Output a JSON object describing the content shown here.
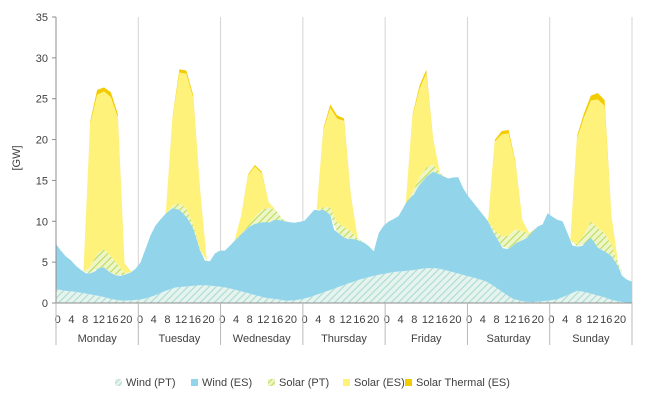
{
  "chart_data": {
    "type": "area",
    "stacked": true,
    "ylabel": "[GW]",
    "ylim": [
      0,
      35
    ],
    "yticks": [
      0,
      5,
      10,
      15,
      20,
      25,
      30,
      35
    ],
    "days": [
      "Monday",
      "Tuesday",
      "Wednesday",
      "Thursday",
      "Friday",
      "Saturday",
      "Sunday"
    ],
    "hour_ticks": [
      "0",
      "4",
      "8",
      "12",
      "16",
      "20"
    ],
    "gridlines": "vertical day separators",
    "legend_position": "bottom",
    "colors": {
      "wind_pt": "#a9ddd0",
      "wind_es": "#92d5ea",
      "solar_pt": "#b9dc5a",
      "solar_es": "#fff27a",
      "solar_thermal_es": "#f2cc00"
    },
    "series": [
      {
        "name": "Wind (PT)",
        "values": [
          1.7,
          1.5,
          1.4,
          1.2,
          1.0,
          0.8,
          0.5,
          0.3,
          0.3,
          0.4,
          0.6,
          1.0,
          1.5,
          1.9,
          2.0,
          2.1,
          2.2,
          2.1,
          2.0,
          1.8,
          1.5,
          1.2,
          0.9,
          0.6,
          0.5,
          0.3,
          0.3,
          0.5,
          0.8,
          1.2,
          1.6,
          2.0,
          2.4,
          2.8,
          3.1,
          3.4,
          3.6,
          3.8,
          3.9,
          4.0,
          4.2,
          4.3,
          4.2,
          3.9,
          3.6,
          3.3,
          3.0,
          2.7,
          2.0,
          1.2,
          0.5,
          0.2,
          0.1,
          0.2,
          0.3,
          0.5,
          1.0,
          1.5,
          1.3,
          1.0,
          0.7,
          0.3,
          0.1,
          0.0
        ]
      },
      {
        "name": "Wind (ES)",
        "values": [
          5.5,
          4.8,
          4.2,
          3.8,
          3.2,
          2.8,
          2.5,
          2.6,
          3.0,
          4.0,
          3.5,
          3.2,
          3.0,
          3.0,
          3.2,
          3.4,
          3.8,
          4.5,
          6.0,
          7.5,
          8.5,
          9.0,
          9.4,
          9.8,
          9.8,
          9.4,
          8.7,
          8.0,
          6.5,
          4.3,
          3.0,
          3.0,
          4.0,
          4.4,
          4.5,
          5.2,
          6.0,
          6.8,
          7.5,
          8.3,
          8.7,
          9.0,
          9.3,
          9.3,
          9.7,
          9.8,
          9.7,
          9.6,
          9.5,
          9.5,
          9.5,
          10.0,
          10.5,
          10.2,
          10.1,
          9.8,
          7.2,
          6.5,
          5.8,
          5.4,
          5.3,
          4.8,
          4.4,
          3.8,
          3.0,
          5.1,
          5.9,
          6.3,
          6.5,
          6.8,
          7.8,
          8.9,
          9.2,
          10.2,
          10.8,
          11.5,
          11.8,
          11.6,
          11.4,
          11.3,
          11.6,
          11.8,
          10.6,
          9.8,
          9.2,
          8.6,
          8.0,
          7.5,
          6.6,
          6.0,
          5.4,
          5.7,
          6.5,
          7.2,
          7.5,
          7.9,
          8.6,
          9.2,
          9.4,
          10.7,
          10.2,
          9.7,
          9.3,
          7.6,
          5.8,
          5.4,
          5.6,
          6.4,
          7.0,
          5.9,
          5.7,
          5.6,
          5.3,
          4.6,
          3.2,
          2.8,
          2.6
        ]
      },
      {
        "name": "Solar (PT)",
        "values": [
          0,
          0,
          0,
          0,
          0,
          0.8,
          1.8,
          2.2,
          2.0,
          1.4,
          0.2,
          0,
          0,
          0,
          0,
          0,
          0,
          0.3,
          0.8,
          1.0,
          0.5,
          0.1,
          0,
          0,
          0,
          0,
          0,
          0,
          0.2,
          0.8,
          1.5,
          1.8,
          1.2,
          0.2,
          0,
          0,
          0,
          0,
          0,
          0.3,
          0.9,
          1.2,
          1.3,
          0.9,
          0.2,
          0,
          0,
          0,
          0,
          0,
          0,
          0,
          0.4,
          0.9,
          1.1,
          0.9,
          0.2,
          0,
          0,
          0,
          0,
          0,
          0,
          0,
          0.5,
          1.2,
          1.6,
          1.7,
          1.1,
          0.3,
          0,
          0,
          0,
          0,
          0,
          0,
          0.3,
          1.1,
          2.0,
          2.4,
          2.2,
          1.4,
          0.3,
          0,
          0
        ]
      },
      {
        "name": "Solar (ES)",
        "values": [
          0,
          0,
          0,
          0,
          0,
          17.5,
          19.5,
          19.3,
          19.5,
          18.0,
          1.0,
          0,
          0,
          0,
          0,
          0,
          0,
          10.7,
          16.0,
          16.5,
          15.5,
          7.3,
          0,
          0,
          0,
          0,
          0,
          2.3,
          6.2,
          6.2,
          4.5,
          0.7,
          0,
          0,
          0,
          0,
          0,
          0,
          0,
          9.5,
          12.2,
          12.7,
          13.0,
          4.3,
          0,
          0,
          0,
          0,
          0,
          0,
          0,
          0,
          9.3,
          10.8,
          11.6,
          3.0,
          0,
          0,
          0,
          0,
          0,
          0,
          0,
          0,
          10.9,
          12.5,
          12.5,
          8.1,
          1.4,
          0,
          0,
          0,
          0,
          0,
          0,
          0,
          13.0,
          14.4,
          14.8,
          15.7,
          15.6,
          3.4,
          0,
          0,
          0
        ]
      },
      {
        "name": "Solar Thermal (ES)",
        "values": [
          0,
          0,
          0,
          0,
          0,
          0.3,
          0.6,
          0.5,
          0.6,
          0.4,
          0.1,
          0,
          0,
          0,
          0,
          0,
          0,
          0.2,
          0.4,
          0.4,
          0.3,
          0.1,
          0,
          0,
          0,
          0,
          0,
          0,
          0.1,
          0.2,
          0.2,
          0,
          0,
          0,
          0,
          0,
          0,
          0,
          0,
          0.2,
          0.4,
          0.4,
          0.3,
          0.1,
          0,
          0,
          0,
          0,
          0,
          0,
          0,
          0,
          0.2,
          0.4,
          0.4,
          0.1,
          0,
          0,
          0,
          0,
          0,
          0,
          0,
          0,
          0.2,
          0.4,
          0.4,
          0.2,
          0,
          0,
          0,
          0,
          0,
          0,
          0,
          0,
          0.3,
          0.5,
          0.6,
          0.8,
          0.7,
          0.1,
          0,
          0,
          0
        ]
      }
    ]
  }
}
